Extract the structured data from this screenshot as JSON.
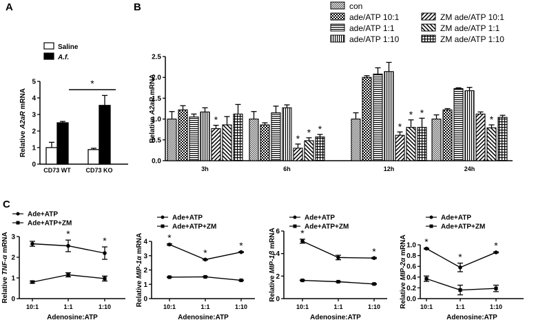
{
  "chart_data": [
    {
      "panel": "A",
      "type": "bar",
      "categories": [
        "CD73 WT",
        "CD73 KO"
      ],
      "series": [
        {
          "name": "Saline",
          "values": [
            1.0,
            0.88
          ],
          "errors": [
            0.32,
            0.08
          ]
        },
        {
          "name": "A.f.",
          "values": [
            2.5,
            3.55
          ],
          "errors": [
            0.08,
            0.6
          ]
        }
      ],
      "ylabel_parts": [
        "Relative ",
        "A2aR",
        " mRNA"
      ],
      "ylim": [
        0,
        5
      ],
      "yticks": [
        "0",
        "1",
        "2",
        "3",
        "4",
        "5"
      ],
      "significance": "*"
    },
    {
      "panel": "B",
      "type": "bar",
      "categories": [
        "3h",
        "6h",
        "12h",
        "24h"
      ],
      "series": [
        {
          "name": "con",
          "values": [
            1.0,
            1.0,
            1.0,
            1.0
          ],
          "errors": [
            0.18,
            0.18,
            0.15,
            0.1
          ],
          "stars": [
            false,
            false,
            false,
            false
          ]
        },
        {
          "name": "ade/ATP 10:1",
          "values": [
            1.22,
            0.86,
            2.0,
            1.22
          ],
          "errors": [
            0.1,
            0.05,
            0.04,
            0.03
          ],
          "stars": [
            false,
            false,
            false,
            false
          ]
        },
        {
          "name": "ade/ATP 1:1",
          "values": [
            1.05,
            1.15,
            2.08,
            1.73
          ],
          "errors": [
            0.07,
            0.16,
            0.15,
            0.02
          ],
          "stars": [
            false,
            false,
            false,
            false
          ]
        },
        {
          "name": "ade/ATP 1:10",
          "values": [
            1.17,
            1.27,
            2.14,
            1.68
          ],
          "errors": [
            0.1,
            0.07,
            0.22,
            0.08
          ],
          "stars": [
            false,
            false,
            false,
            false
          ]
        },
        {
          "name": "ZM ade/ATP 10:1",
          "values": [
            0.77,
            0.3,
            0.61,
            1.12
          ],
          "errors": [
            0.08,
            0.1,
            0.08,
            0.05
          ],
          "stars": [
            true,
            true,
            true,
            false
          ]
        },
        {
          "name": "ZM ade/ATP 1:1",
          "values": [
            0.86,
            0.48,
            0.8,
            0.79
          ],
          "errors": [
            0.2,
            0.07,
            0.18,
            0.07
          ],
          "stars": [
            false,
            true,
            true,
            true
          ]
        },
        {
          "name": "ZM ade/ATP 1:10",
          "values": [
            1.12,
            0.57,
            0.8,
            1.04
          ],
          "errors": [
            0.23,
            0.06,
            0.22,
            0.05
          ],
          "stars": [
            false,
            true,
            true,
            false
          ]
        }
      ],
      "ylabel_parts": [
        "Relative ",
        "A2aR",
        " mRNA"
      ],
      "ylim": [
        0,
        2.5
      ],
      "yticks": [
        "0.0",
        "0.5",
        "1.0",
        "1.5",
        "2.0",
        "2.5"
      ]
    },
    {
      "panel": "C1",
      "type": "line",
      "x": [
        "10:1",
        "1:1",
        "1:10"
      ],
      "xlabel": "Adenosine:ATP",
      "ylabel_parts": [
        "Relative ",
        "TNF-α",
        " mRNA"
      ],
      "ylim": [
        0,
        3
      ],
      "yticks": [
        "0",
        "1",
        "2",
        "3"
      ],
      "series": [
        {
          "name": "Ade+ATP",
          "values": [
            2.65,
            2.55,
            2.2
          ],
          "errors": [
            0.12,
            0.28,
            0.3
          ]
        },
        {
          "name": "Ade+ATP+ZM",
          "values": [
            0.8,
            1.15,
            0.97
          ],
          "errors": [
            0.05,
            0.1,
            0.12
          ]
        }
      ],
      "stars": [
        false,
        true,
        true
      ]
    },
    {
      "panel": "C2",
      "type": "line",
      "x": [
        "10:1",
        "1:1",
        "1:10"
      ],
      "xlabel": "Adenosine:ATP",
      "ylabel_parts": [
        "Relative ",
        "MIP-1α",
        " mRNA"
      ],
      "ylim": [
        0,
        4
      ],
      "yticks": [
        "0",
        "1",
        "2",
        "3",
        "4"
      ],
      "series": [
        {
          "name": "Ade+ATP",
          "values": [
            3.78,
            2.73,
            3.25
          ],
          "errors": [
            0.05,
            0.03,
            0.03
          ]
        },
        {
          "name": "Ade+ATP+ZM",
          "values": [
            1.5,
            1.52,
            1.28
          ],
          "errors": [
            0.02,
            0.02,
            0.02
          ]
        }
      ],
      "stars": [
        true,
        true,
        true
      ]
    },
    {
      "panel": "C3",
      "type": "line",
      "x": [
        "10:1",
        "1:1",
        "1:10"
      ],
      "xlabel": "Adenosine:ATP",
      "ylabel_parts": [
        "Relative ",
        "MIP-1β",
        " mRNA"
      ],
      "ylim": [
        0,
        6
      ],
      "yticks": [
        "0",
        "2",
        "4",
        "6"
      ],
      "series": [
        {
          "name": "Ade+ATP",
          "values": [
            5.1,
            3.65,
            3.6
          ],
          "errors": [
            0.18,
            0.2,
            0.05
          ]
        },
        {
          "name": "Ade+ATP+ZM",
          "values": [
            1.62,
            1.5,
            1.3
          ],
          "errors": [
            0.03,
            0.03,
            0.03
          ]
        }
      ],
      "stars": [
        true,
        false,
        true
      ]
    },
    {
      "panel": "C4",
      "type": "line",
      "x": [
        "10:1",
        "1:1",
        "1:10"
      ],
      "xlabel": "Adenosine:ATP",
      "ylabel_parts": [
        "Relative ",
        "MIP-2α",
        " mRNA"
      ],
      "ylim": [
        0,
        1.0
      ],
      "yticks": [
        "0.0",
        "0.2",
        "0.4",
        "0.6",
        "0.8",
        "1.0"
      ],
      "series": [
        {
          "name": "Ade+ATP",
          "values": [
            0.93,
            0.58,
            0.86
          ],
          "errors": [
            0.01,
            0.08,
            0.01
          ]
        },
        {
          "name": "Ade+ATP+ZM",
          "values": [
            0.37,
            0.16,
            0.19
          ],
          "errors": [
            0.05,
            0.09,
            0.06
          ]
        }
      ],
      "stars": [
        true,
        true,
        true
      ]
    }
  ],
  "panel_labels": {
    "a": "A",
    "b": "B",
    "c": "C"
  }
}
